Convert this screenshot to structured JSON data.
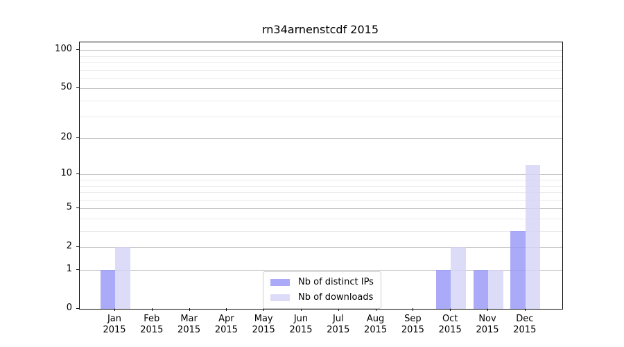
{
  "title": "rn34arnenstcdf 2015",
  "chart_data": {
    "type": "bar",
    "title": "rn34arnenstcdf 2015",
    "categories": [
      "Jan",
      "Feb",
      "Mar",
      "Apr",
      "May",
      "Jun",
      "Jul",
      "Aug",
      "Sep",
      "Oct",
      "Nov",
      "Dec"
    ],
    "year_label": "2015",
    "series": [
      {
        "name": "Nb of distinct IPs",
        "color": "rgba(149,149,246,0.8)",
        "values": [
          1,
          0,
          0,
          0,
          0,
          0,
          0,
          0,
          0,
          1,
          1,
          3
        ]
      },
      {
        "name": "Nb of downloads",
        "color": "rgba(211,211,246,0.8)",
        "values": [
          2,
          0,
          0,
          0,
          0,
          0,
          0,
          0,
          0,
          2,
          1,
          12
        ]
      }
    ],
    "scale": "log1p",
    "ylim": [
      0,
      115
    ],
    "yticks": [
      0,
      1,
      2,
      5,
      10,
      20,
      50,
      100
    ],
    "minor_yticks": [
      3,
      4,
      6,
      7,
      8,
      9,
      30,
      40,
      60,
      70,
      80,
      90
    ],
    "grid": true,
    "legend_position": "lower center",
    "colors": {
      "major_grid": "#c6c6c6",
      "minor_grid": "#ebebeb",
      "axis": "#0a0a0a",
      "text": "#000000"
    }
  }
}
